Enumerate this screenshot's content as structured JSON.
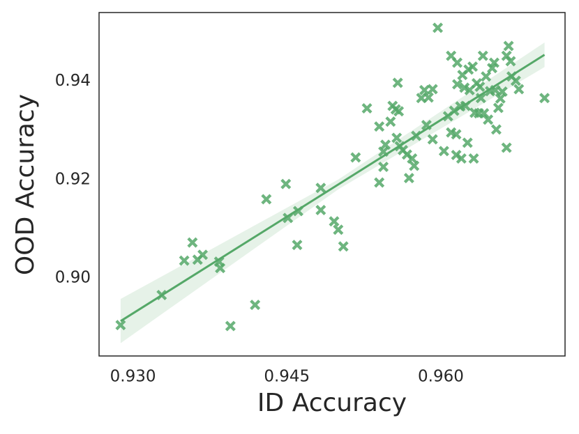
{
  "chart_data": {
    "type": "scatter",
    "x_label": "ID Accuracy",
    "y_label": "OOD Accuracy",
    "color": "#55a868",
    "xlim": [
      0.9267,
      0.9721
    ],
    "ylim": [
      0.8841,
      0.954
    ],
    "xticks": [
      {
        "value": 0.93,
        "label": "0.930"
      },
      0.945,
      {
        "value": 0.96,
        "label": "0.960"
      }
    ],
    "yticks": [
      {
        "value": 0.9,
        "label": "0.90"
      },
      0.92,
      0.94
    ],
    "grid": false,
    "x": [
      0.9288,
      0.9328,
      0.935,
      0.9358,
      0.9363,
      0.9368,
      0.9384,
      0.9385,
      0.9395,
      0.9419,
      0.943,
      0.9449,
      0.9451,
      0.9461,
      0.946,
      0.9483,
      0.9483,
      0.9496,
      0.95,
      0.9505,
      0.9517,
      0.9528,
      0.954,
      0.954,
      0.9544,
      0.9544,
      0.9546,
      0.9551,
      0.9553,
      0.9556,
      0.9557,
      0.9558,
      0.9559,
      0.956,
      0.9563,
      0.9567,
      0.9569,
      0.9572,
      0.9574,
      0.9576,
      0.9581,
      0.9584,
      0.9586,
      0.9588,
      0.9592,
      0.9592,
      0.9597,
      0.9603,
      0.9607,
      0.961,
      0.961,
      0.9613,
      0.9615,
      0.9615,
      0.9616,
      0.9616,
      0.9619,
      0.962,
      0.9621,
      0.9623,
      0.9624,
      0.9626,
      0.9627,
      0.9628,
      0.9631,
      0.9632,
      0.9633,
      0.9635,
      0.9637,
      0.9638,
      0.9639,
      0.9641,
      0.9642,
      0.9644,
      0.9646,
      0.9648,
      0.965,
      0.9652,
      0.9653,
      0.9654,
      0.9656,
      0.9658,
      0.966,
      0.9664,
      0.9664,
      0.9666,
      0.9668,
      0.9669,
      0.9676,
      0.9673,
      0.9701
    ],
    "values": [
      0.8904,
      0.8965,
      0.9035,
      0.9072,
      0.9037,
      0.9047,
      0.9033,
      0.902,
      0.8902,
      0.8945,
      0.916,
      0.9191,
      0.9122,
      0.9136,
      0.9067,
      0.9183,
      0.9138,
      0.9115,
      0.9098,
      0.9064,
      0.9245,
      0.9345,
      0.9194,
      0.9308,
      0.9257,
      0.9226,
      0.9271,
      0.9318,
      0.935,
      0.9343,
      0.9285,
      0.9397,
      0.9339,
      0.9268,
      0.926,
      0.9251,
      0.9203,
      0.9243,
      0.9228,
      0.9289,
      0.9366,
      0.9382,
      0.9311,
      0.9367,
      0.9384,
      0.9282,
      0.9509,
      0.9258,
      0.9329,
      0.9452,
      0.9296,
      0.934,
      0.925,
      0.9292,
      0.9438,
      0.9394,
      0.9349,
      0.9243,
      0.9413,
      0.9387,
      0.935,
      0.9275,
      0.9424,
      0.9382,
      0.943,
      0.9243,
      0.9336,
      0.9396,
      0.9335,
      0.9389,
      0.9366,
      0.9452,
      0.9335,
      0.941,
      0.9322,
      0.938,
      0.9427,
      0.9438,
      0.9382,
      0.9302,
      0.9346,
      0.9365,
      0.9379,
      0.9452,
      0.9265,
      0.9472,
      0.9441,
      0.941,
      0.9384,
      0.9401,
      0.9366
    ],
    "fit": {
      "x": [
        0.9288,
        0.95,
        0.9701
      ],
      "y": [
        0.8912,
        0.919,
        0.9454
      ],
      "lower": [
        0.8867,
        0.918,
        0.9429
      ],
      "upper": [
        0.8957,
        0.92,
        0.9479
      ]
    }
  }
}
